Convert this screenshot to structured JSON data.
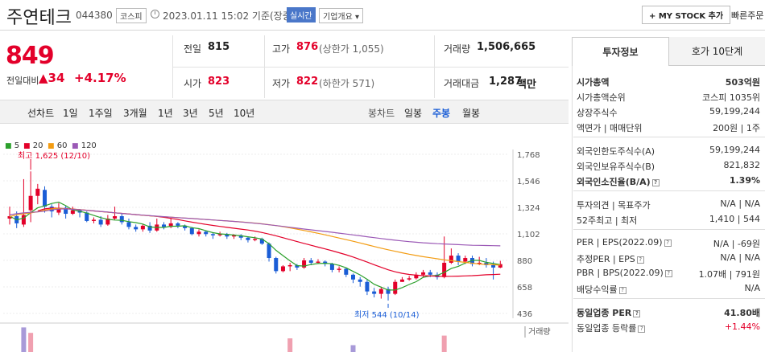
{
  "header": {
    "name": "주연테크",
    "code": "044380",
    "market": "코스피",
    "datetime": "2023.01.11 15:02 기준(장중)",
    "realtime": "실시간",
    "overview": "기업개요 ▾",
    "mystock": "+ MY STOCK 추가",
    "quick": "빠른주문"
  },
  "summary": {
    "price": "849",
    "prev_label": "전일대비",
    "change_abs": "▲34",
    "change_pct": "+4.17%",
    "prev_close_label": "전일",
    "prev_close": "815",
    "high_label": "고가",
    "high": "876",
    "upper_limit": "(상한가 1,055)",
    "volume_label": "거래량",
    "volume": "1,506,665",
    "open_label": "시가",
    "open": "823",
    "low_label": "저가",
    "low": "822",
    "lower_limit": "(하한가 571)",
    "amount_label": "거래대금",
    "amount": "1,287",
    "amount_unit": "백만"
  },
  "period": {
    "left_label": "선차트",
    "left_items": [
      "1일",
      "1주일",
      "3개월",
      "1년",
      "3년",
      "5년",
      "10년"
    ],
    "right_label": "봉차트",
    "right_items": [
      "일봉",
      "주봉",
      "월봉"
    ],
    "selected": "주봉"
  },
  "chart_data": {
    "type": "candlestick",
    "legend": [
      {
        "name": "5",
        "color": "#2ca02c"
      },
      {
        "name": "20",
        "color": "#e3002a"
      },
      {
        "name": "60",
        "color": "#f39c12"
      },
      {
        "name": "120",
        "color": "#9b59b6"
      }
    ],
    "y_ticks": [
      "1,768",
      "1,546",
      "1,324",
      "1,102",
      "880",
      "658",
      "436"
    ],
    "ylim": [
      436,
      1768
    ],
    "high_note": "최고 1,625 (12/10)",
    "low_note": "최저 544 (10/14)",
    "volume_label": "거래량",
    "candles": [
      [
        1230,
        1250,
        1330,
        1180
      ],
      [
        1250,
        1190,
        1290,
        1150
      ],
      [
        1180,
        1260,
        1560,
        1160
      ],
      [
        1300,
        1420,
        1625,
        1200
      ],
      [
        1420,
        1480,
        1520,
        1350
      ],
      [
        1470,
        1330,
        1500,
        1280
      ],
      [
        1330,
        1290,
        1350,
        1240
      ],
      [
        1280,
        1320,
        1360,
        1260
      ],
      [
        1320,
        1270,
        1340,
        1230
      ],
      [
        1270,
        1300,
        1330,
        1260
      ],
      [
        1300,
        1280,
        1310,
        1240
      ],
      [
        1280,
        1210,
        1290,
        1200
      ],
      [
        1210,
        1220,
        1240,
        1190
      ],
      [
        1220,
        1180,
        1250,
        1160
      ],
      [
        1180,
        1230,
        1260,
        1170
      ],
      [
        1230,
        1250,
        1330,
        1220
      ],
      [
        1250,
        1200,
        1270,
        1180
      ],
      [
        1200,
        1160,
        1230,
        1140
      ],
      [
        1160,
        1140,
        1180,
        1120
      ],
      [
        1140,
        1170,
        1180,
        1120
      ],
      [
        1170,
        1130,
        1200,
        1110
      ],
      [
        1130,
        1180,
        1230,
        1120
      ],
      [
        1180,
        1160,
        1200,
        1140
      ],
      [
        1160,
        1190,
        1230,
        1150
      ],
      [
        1190,
        1170,
        1200,
        1150
      ],
      [
        1170,
        1150,
        1180,
        1130
      ],
      [
        1150,
        1100,
        1160,
        1090
      ],
      [
        1100,
        1120,
        1140,
        1080
      ],
      [
        1120,
        1100,
        1130,
        1080
      ],
      [
        1100,
        1090,
        1110,
        1060
      ],
      [
        1090,
        1100,
        1120,
        1080
      ],
      [
        1100,
        1080,
        1110,
        1060
      ],
      [
        1080,
        1090,
        1100,
        1060
      ],
      [
        1090,
        1070,
        1100,
        1050
      ],
      [
        1070,
        1050,
        1080,
        1030
      ],
      [
        1050,
        1060,
        1080,
        1040
      ],
      [
        1060,
        1020,
        1070,
        1010
      ],
      [
        1020,
        900,
        1030,
        870
      ],
      [
        900,
        790,
        910,
        770
      ],
      [
        790,
        830,
        840,
        780
      ],
      [
        830,
        840,
        860,
        790
      ],
      [
        840,
        820,
        850,
        800
      ],
      [
        820,
        880,
        900,
        810
      ],
      [
        880,
        860,
        900,
        840
      ],
      [
        860,
        870,
        890,
        850
      ],
      [
        870,
        850,
        880,
        830
      ],
      [
        850,
        800,
        860,
        780
      ],
      [
        800,
        810,
        830,
        780
      ],
      [
        810,
        760,
        820,
        740
      ],
      [
        760,
        720,
        770,
        690
      ],
      [
        720,
        700,
        740,
        660
      ],
      [
        700,
        620,
        720,
        590
      ],
      [
        620,
        600,
        650,
        570
      ],
      [
        600,
        640,
        660,
        560
      ],
      [
        640,
        600,
        660,
        544
      ],
      [
        600,
        700,
        720,
        590
      ],
      [
        700,
        720,
        740,
        700
      ],
      [
        720,
        730,
        750,
        710
      ],
      [
        730,
        760,
        780,
        720
      ],
      [
        760,
        780,
        800,
        740
      ],
      [
        780,
        760,
        800,
        740
      ],
      [
        760,
        740,
        780,
        720
      ],
      [
        740,
        860,
        1080,
        730
      ],
      [
        860,
        920,
        980,
        850
      ],
      [
        920,
        870,
        940,
        840
      ],
      [
        870,
        900,
        920,
        850
      ],
      [
        900,
        850,
        920,
        830
      ],
      [
        850,
        860,
        910,
        840
      ],
      [
        860,
        840,
        900,
        820
      ],
      [
        840,
        820,
        870,
        720
      ],
      [
        820,
        849,
        876,
        815
      ]
    ],
    "volume_bars": [
      {
        "index": 2,
        "value": 0.9,
        "up": false
      },
      {
        "index": 3,
        "value": 0.7,
        "up": true
      },
      {
        "index": 40,
        "value": 0.5,
        "up": true
      },
      {
        "index": 49,
        "value": 0.25,
        "up": false
      },
      {
        "index": 62,
        "value": 0.6,
        "up": true
      }
    ]
  },
  "invest": {
    "tab_invest": "투자정보",
    "tab_order": "호가 10단계",
    "rows": [
      {
        "label": "시가총액",
        "value": "503억원",
        "bold": true
      },
      {
        "label": "시가총액순위",
        "value": "코스피 1035위"
      },
      {
        "label": "상장주식수",
        "value": "59,199,244"
      },
      {
        "label": "액면가 | 매매단위",
        "value": "200원 | 1주"
      },
      {
        "label": "외국인한도주식수(A)",
        "value": "59,199,244",
        "sep": true
      },
      {
        "label": "외국인보유주식수(B)",
        "value": "821,832"
      },
      {
        "label": "외국인소진율(B/A)",
        "value": "1.39%",
        "bold": true,
        "icon": true
      },
      {
        "label": "투자의견 | 목표주가",
        "value": "N/A | N/A",
        "sep": true
      },
      {
        "label": "52주최고 | 최저",
        "value": "1,410 | 544"
      },
      {
        "label": "PER | EPS(2022.09)",
        "value": "N/A | -69원",
        "sep": true,
        "icon": true
      },
      {
        "label": "추정PER | EPS",
        "value": "N/A | N/A",
        "icon": true
      },
      {
        "label": "PBR | BPS(2022.09)",
        "value": "1.07배 | 791원",
        "icon": true
      },
      {
        "label": "배당수익률",
        "value": "N/A",
        "icon": true
      },
      {
        "label": "동일업종 PER",
        "value": "41.80배",
        "bold": true,
        "sep": true,
        "icon": true
      },
      {
        "label": "동일업종 등락률",
        "value": "+1.44%",
        "red": true,
        "icon": true
      }
    ]
  }
}
